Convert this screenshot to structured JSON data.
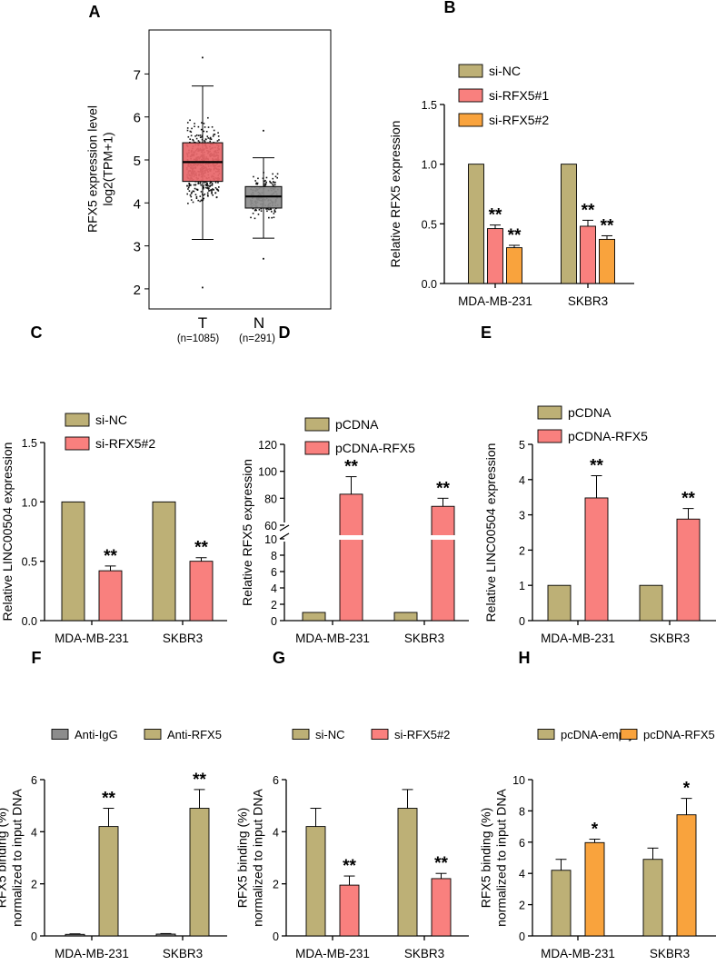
{
  "colors": {
    "tan": "#BDB076",
    "pink": "#F9807E",
    "orange": "#F9A33D",
    "gray": "#8C8C8C",
    "boxT": "#E8676A",
    "boxN": "#8E8E8E"
  },
  "chart_data": [
    {
      "panel": "A",
      "type": "box",
      "ylabel": [
        "RFX5  expression level",
        "log2(TPM+1)"
      ],
      "ylim": [
        1.8,
        7.8
      ],
      "yticks": [
        2,
        3,
        4,
        5,
        6,
        7
      ],
      "groups": [
        {
          "label": "T",
          "n_label": "(n=1085)",
          "color_key": "boxT",
          "q1": 4.5,
          "median": 4.95,
          "q3": 5.4,
          "whisker_low": 3.15,
          "whisker_high": 6.72,
          "point_min": 2.05,
          "point_max": 7.4
        },
        {
          "label": "N",
          "n_label": "(n=291)",
          "color_key": "boxN",
          "q1": 3.88,
          "median": 4.15,
          "q3": 4.38,
          "whisker_low": 3.18,
          "whisker_high": 5.05,
          "point_min": 2.72,
          "point_max": 5.7
        }
      ]
    },
    {
      "panel": "B",
      "type": "bar",
      "ylabel": "Relative RFX5 expression",
      "ylim": [
        0,
        1.5
      ],
      "yticks": [
        "0.0",
        "0.5",
        "1.0",
        "1.5"
      ],
      "categories": [
        "MDA-MB-231",
        "SKBR3"
      ],
      "legend": "top",
      "series": [
        {
          "name": "si-NC",
          "color_key": "tan",
          "values": [
            1.0,
            1.0
          ],
          "errors": [
            0,
            0
          ],
          "sig": [
            "",
            ""
          ]
        },
        {
          "name": "si-RFX5#1",
          "color_key": "pink",
          "values": [
            0.46,
            0.48
          ],
          "errors": [
            0.03,
            0.05
          ],
          "sig": [
            "**",
            "**"
          ]
        },
        {
          "name": "si-RFX5#2",
          "color_key": "orange",
          "values": [
            0.3,
            0.37
          ],
          "errors": [
            0.02,
            0.03
          ],
          "sig": [
            "**",
            "**"
          ]
        }
      ]
    },
    {
      "panel": "C",
      "type": "bar",
      "ylabel": "Relative LINC00504 expression",
      "ylim": [
        0,
        1.5
      ],
      "yticks": [
        "0.0",
        "0.5",
        "1.0",
        "1.5"
      ],
      "categories": [
        "MDA-MB-231",
        "SKBR3"
      ],
      "legend": "top",
      "series": [
        {
          "name": "si-NC",
          "color_key": "tan",
          "values": [
            1.0,
            1.0
          ],
          "errors": [
            0,
            0
          ],
          "sig": [
            "",
            ""
          ]
        },
        {
          "name": "si-RFX5#2",
          "color_key": "pink",
          "values": [
            0.42,
            0.5
          ],
          "errors": [
            0.04,
            0.03
          ],
          "sig": [
            "**",
            "**"
          ]
        }
      ]
    },
    {
      "panel": "D",
      "type": "bar",
      "ylabel": "Relative RFX5 expression",
      "broken_axis": {
        "lower": [
          0,
          10
        ],
        "upper": [
          60,
          120
        ]
      },
      "yticks": [
        "0",
        "2",
        "4",
        "6",
        "8",
        "10",
        "60",
        "80",
        "100",
        "120"
      ],
      "categories": [
        "MDA-MB-231",
        "SKBR3"
      ],
      "legend": "top",
      "series": [
        {
          "name": "pCDNA",
          "color_key": "tan",
          "values": [
            1.0,
            1.0
          ],
          "errors": [
            0,
            0
          ],
          "sig": [
            "",
            ""
          ]
        },
        {
          "name": "pCDNA-RFX5",
          "color_key": "pink",
          "values": [
            83,
            74
          ],
          "errors": [
            13,
            6
          ],
          "sig": [
            "**",
            "**"
          ]
        }
      ]
    },
    {
      "panel": "E",
      "type": "bar",
      "ylabel": "Relative LINC00504 expression",
      "ylim": [
        0,
        5
      ],
      "yticks": [
        "0",
        "1",
        "2",
        "3",
        "4",
        "5"
      ],
      "categories": [
        "MDA-MB-231",
        "SKBR3"
      ],
      "legend": "top",
      "series": [
        {
          "name": "pCDNA",
          "color_key": "tan",
          "values": [
            1.0,
            1.0
          ],
          "errors": [
            0,
            0
          ],
          "sig": [
            "",
            ""
          ]
        },
        {
          "name": "pCDNA-RFX5",
          "color_key": "pink",
          "values": [
            3.48,
            2.88
          ],
          "errors": [
            0.63,
            0.3
          ],
          "sig": [
            "**",
            "**"
          ]
        }
      ]
    },
    {
      "panel": "F",
      "type": "bar",
      "ylabel": [
        "RFX5 binding (%)",
        "normalized to input DNA"
      ],
      "ylim": [
        0,
        6
      ],
      "yticks": [
        "0",
        "2",
        "4",
        "6"
      ],
      "categories": [
        "MDA-MB-231",
        "SKBR3"
      ],
      "legend": "top",
      "series": [
        {
          "name": "Anti-IgG",
          "color_key": "gray",
          "values": [
            0.06,
            0.07
          ],
          "errors": [
            0.02,
            0.02
          ],
          "sig": [
            "",
            ""
          ]
        },
        {
          "name": "Anti-RFX5",
          "color_key": "tan",
          "values": [
            4.2,
            4.9
          ],
          "errors": [
            0.7,
            0.72
          ],
          "sig": [
            "**",
            "**"
          ]
        }
      ]
    },
    {
      "panel": "G",
      "type": "bar",
      "ylabel": [
        "RFX5 binding (%)",
        "normalized to input DNA"
      ],
      "ylim": [
        0,
        6
      ],
      "yticks": [
        "0",
        "2",
        "4",
        "6"
      ],
      "categories": [
        "MDA-MB-231",
        "SKBR3"
      ],
      "legend": "top",
      "series": [
        {
          "name": "si-NC",
          "color_key": "tan",
          "values": [
            4.2,
            4.9
          ],
          "errors": [
            0.7,
            0.72
          ],
          "sig": [
            "",
            ""
          ]
        },
        {
          "name": "si-RFX5#2",
          "color_key": "pink",
          "values": [
            1.95,
            2.2
          ],
          "errors": [
            0.35,
            0.2
          ],
          "sig": [
            "**",
            "**"
          ]
        }
      ]
    },
    {
      "panel": "H",
      "type": "bar",
      "ylabel": [
        "RFX5 binding (%)",
        "normalized to input DNA"
      ],
      "ylim": [
        0,
        10
      ],
      "yticks": [
        "0",
        "2",
        "4",
        "6",
        "8",
        "10"
      ],
      "categories": [
        "MDA-MB-231",
        "SKBR3"
      ],
      "legend": "top",
      "series": [
        {
          "name": "pcDNA-empty",
          "color_key": "tan",
          "values": [
            4.2,
            4.9
          ],
          "errors": [
            0.7,
            0.72
          ],
          "sig": [
            "",
            ""
          ]
        },
        {
          "name": "pcDNA-RFX5",
          "color_key": "orange",
          "values": [
            5.97,
            7.75
          ],
          "errors": [
            0.22,
            1.05
          ],
          "sig": [
            "*",
            "*"
          ]
        }
      ]
    }
  ]
}
